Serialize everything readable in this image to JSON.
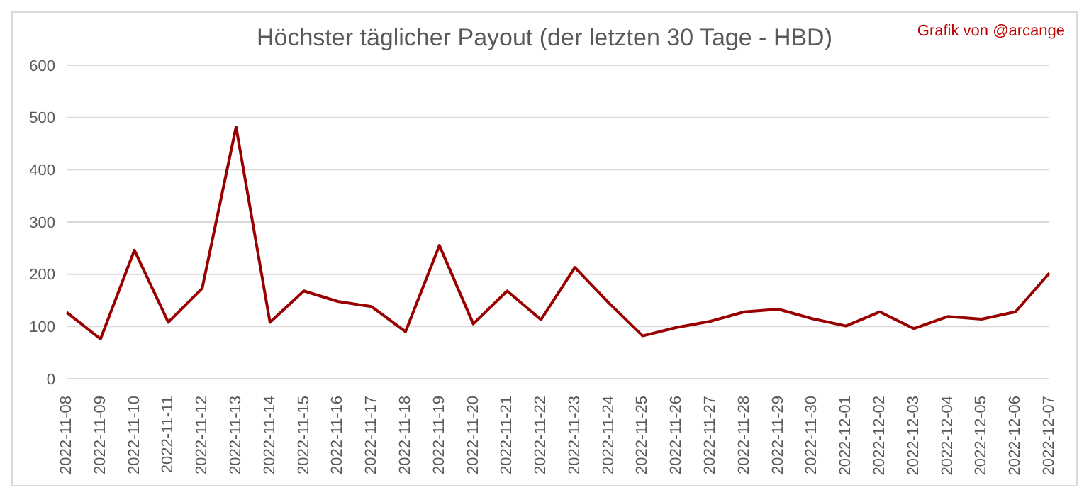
{
  "chart_data": {
    "type": "line",
    "title": "Höchster täglicher Payout (der letzten 30 Tage - HBD)",
    "annotations": [
      "Grafik von @arcange"
    ],
    "categories": [
      "2022-11-08",
      "2022-11-09",
      "2022-11-10",
      "2022-11-11",
      "2022-11-12",
      "2022-11-13",
      "2022-11-14",
      "2022-11-15",
      "2022-11-16",
      "2022-11-17",
      "2022-11-18",
      "2022-11-19",
      "2022-11-20",
      "2022-11-21",
      "2022-11-22",
      "2022-11-23",
      "2022-11-24",
      "2022-11-25",
      "2022-11-26",
      "2022-11-27",
      "2022-11-28",
      "2022-11-29",
      "2022-11-30",
      "2022-12-01",
      "2022-12-02",
      "2022-12-03",
      "2022-12-04",
      "2022-12-05",
      "2022-12-06",
      "2022-12-07"
    ],
    "series": [
      {
        "color": "#990000",
        "values": [
          127,
          76,
          246,
          108,
          173,
          482,
          108,
          168,
          148,
          138,
          90,
          255,
          105,
          168,
          113,
          213,
          145,
          82,
          98,
          110,
          128,
          133,
          115,
          101,
          128,
          96,
          119,
          114,
          128,
          202
        ]
      }
    ],
    "ylim": [
      0,
      600
    ],
    "yticks": [
      0,
      100,
      200,
      300,
      400,
      500,
      600
    ],
    "grid": "y",
    "legend": false,
    "marker": "none",
    "line_style": "solid"
  }
}
